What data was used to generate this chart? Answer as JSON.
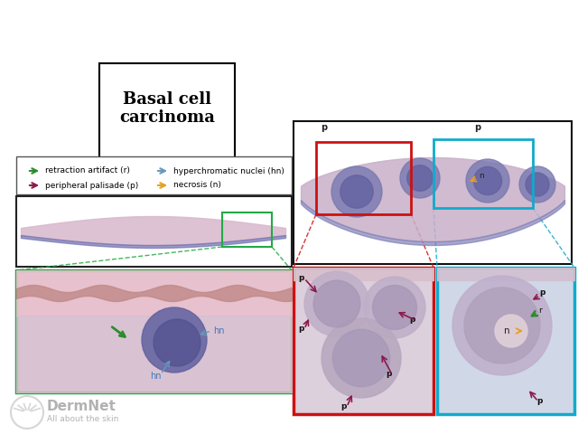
{
  "title": "Basal cell\ncarcinoma",
  "background_color": "#ffffff",
  "legend_items": [
    {
      "label": "retraction artifact (r)",
      "color": "#2e8b2e"
    },
    {
      "label": "hyperchromatic nuclei (hn)",
      "color": "#6699bb"
    },
    {
      "label": "peripheral palisade (p)",
      "color": "#8b1a4a"
    },
    {
      "label": "necrosis (n)",
      "color": "#e8a020"
    }
  ],
  "panel_border_overview": "#222222",
  "panel_border_green": "#22aa44",
  "panel_border_red": "#cc1111",
  "panel_border_cyan": "#11aacc",
  "panel_border_right_top": "#111111",
  "tissue_pink": "#d8b8cc",
  "tissue_blue": "#7070b0",
  "tissue_lavender": "#c8b0c8",
  "nodule_outer": "#7878b0",
  "nodule_inner": "#6060a0",
  "dermnet_color": "#888888"
}
